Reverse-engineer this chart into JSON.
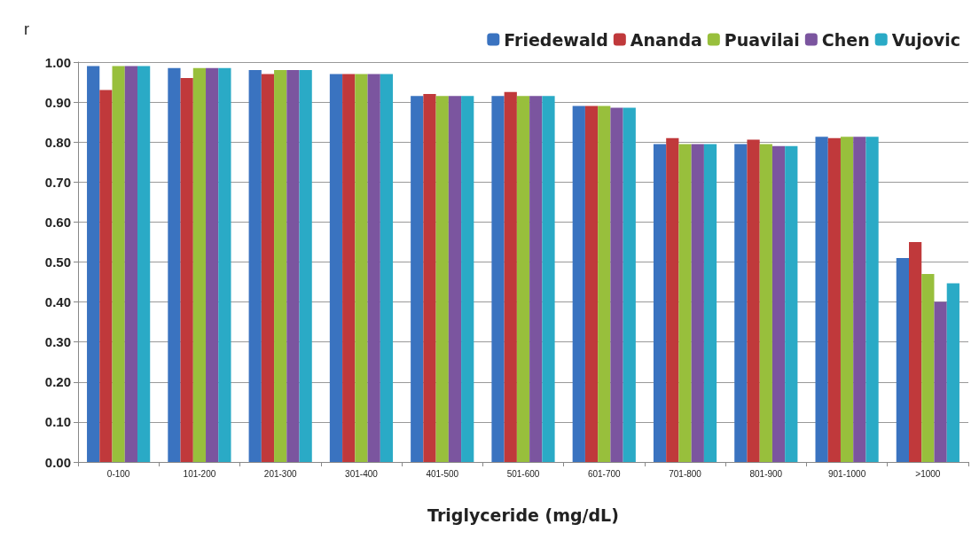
{
  "chart_data": {
    "type": "bar",
    "ylabel": "r",
    "xlabel": "Triglyceride (mg/dL)",
    "categories": [
      "0-100",
      "101-200",
      "201-300",
      "301-400",
      "401-500",
      "501-600",
      "601-700",
      "701-800",
      "801-900",
      "901-1000",
      ">1000"
    ],
    "series": [
      {
        "name": "Friedewald",
        "color": "#3a73c0",
        "values": [
          0.99,
          0.985,
          0.98,
          0.97,
          0.915,
          0.915,
          0.89,
          0.795,
          0.795,
          0.813,
          0.51
        ]
      },
      {
        "name": "Ananda",
        "color": "#c0393b",
        "values": [
          0.93,
          0.96,
          0.97,
          0.97,
          0.92,
          0.925,
          0.89,
          0.81,
          0.806,
          0.81,
          0.55
        ]
      },
      {
        "name": "Puavilai",
        "color": "#98bf3c",
        "values": [
          0.99,
          0.985,
          0.98,
          0.97,
          0.915,
          0.915,
          0.89,
          0.795,
          0.795,
          0.813,
          0.47
        ]
      },
      {
        "name": "Chen",
        "color": "#7b559f",
        "values": [
          0.99,
          0.985,
          0.98,
          0.97,
          0.915,
          0.915,
          0.886,
          0.795,
          0.79,
          0.813,
          0.4
        ]
      },
      {
        "name": "Vujovic",
        "color": "#2aaac6",
        "values": [
          0.99,
          0.985,
          0.98,
          0.97,
          0.915,
          0.915,
          0.886,
          0.795,
          0.79,
          0.813,
          0.447
        ]
      }
    ],
    "ylim": [
      0,
      1
    ],
    "yticks": [
      {
        "value": 0,
        "label": "0.00"
      },
      {
        "value": 0.1,
        "label": "0.10"
      },
      {
        "value": 0.2,
        "label": "0.20"
      },
      {
        "value": 0.3,
        "label": "0.30"
      },
      {
        "value": 0.4,
        "label": "0.40"
      },
      {
        "value": 0.5,
        "label": "0.50"
      },
      {
        "value": 0.6,
        "label": "0.60"
      },
      {
        "value": 0.7,
        "label": "0.70"
      },
      {
        "value": 0.8,
        "label": "0.80"
      },
      {
        "value": 0.9,
        "label": "0.90"
      },
      {
        "value": 1,
        "label": "1.00"
      }
    ],
    "grid": "y",
    "legend": "top right"
  }
}
